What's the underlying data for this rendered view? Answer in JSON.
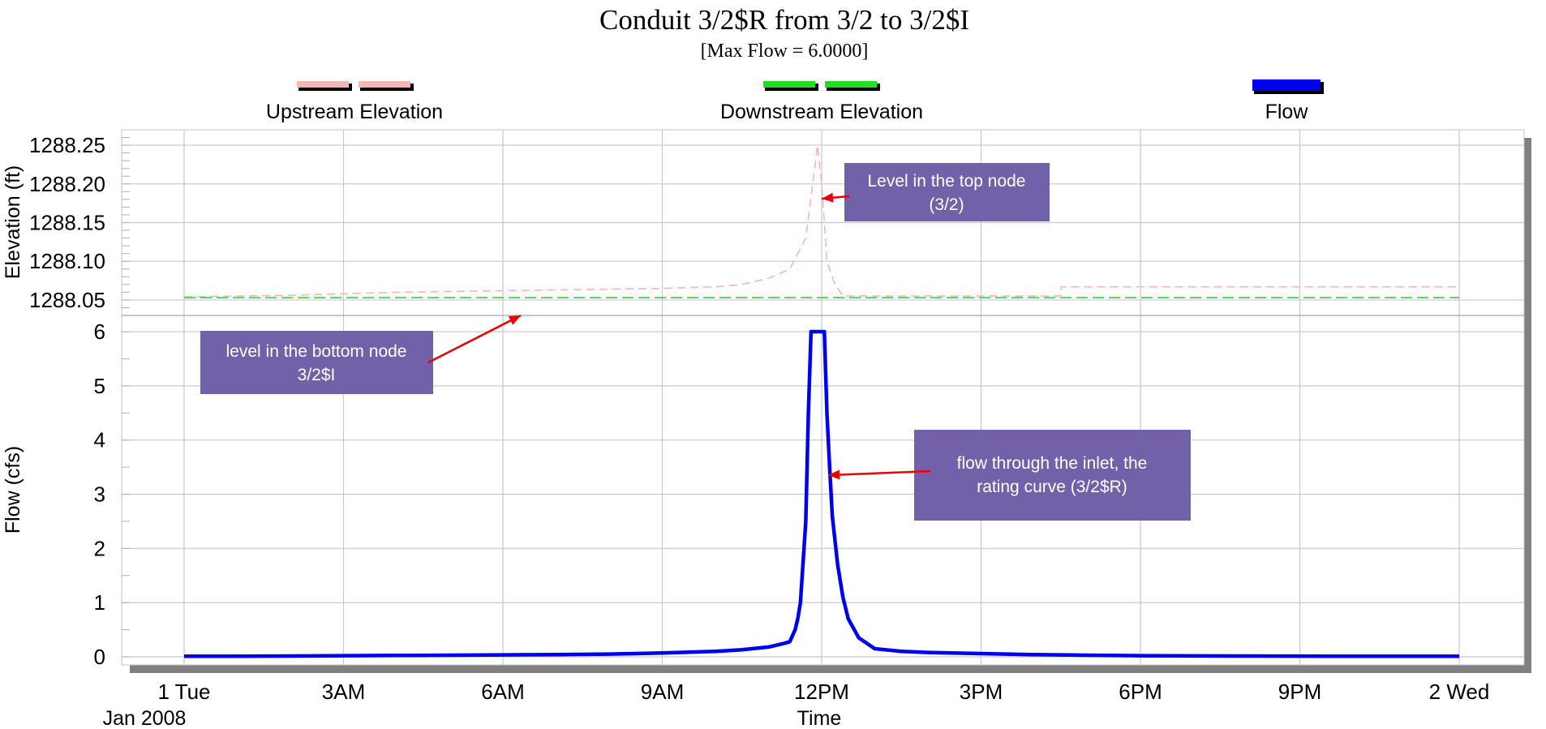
{
  "chart_data": {
    "type": "line",
    "title": "Conduit 3/2$R from 3/2 to 3/2$I",
    "subtitle": "[Max Flow = 6.0000]",
    "xlabel": "Time",
    "x_ticks": [
      "1 Tue",
      "3AM",
      "6AM",
      "9AM",
      "12PM",
      "3PM",
      "6PM",
      "9PM",
      "2 Wed"
    ],
    "x_date_label": "Jan 2008",
    "x_range_hours": [
      0,
      24
    ],
    "grid": true,
    "legend_position": "top",
    "legend": [
      {
        "name": "Upstream Elevation",
        "color": "#f4b6b6",
        "style": "dashed"
      },
      {
        "name": "Downstream Elevation",
        "color": "#22dd22",
        "style": "dashed"
      },
      {
        "name": "Flow",
        "color": "#0000ee",
        "style": "solid"
      }
    ],
    "panels": [
      {
        "id": "elevation",
        "ylabel": "Elevation (ft)",
        "ylim": [
          1288.03,
          1288.27
        ],
        "y_ticks": [
          "1288.25",
          "1288.20",
          "1288.15",
          "1288.10",
          "1288.05"
        ],
        "y_tick_values": [
          1288.25,
          1288.2,
          1288.15,
          1288.1,
          1288.05
        ],
        "series": [
          {
            "name": "Upstream Elevation",
            "x": [
              0,
              1,
              2,
              3,
              4,
              5,
              6,
              7,
              8,
              9,
              10,
              10.5,
              11,
              11.4,
              11.7,
              11.85,
              11.92,
              12.0,
              12.1,
              12.25,
              12.4,
              13,
              16.5,
              16.51,
              18,
              24
            ],
            "y": [
              1288.054,
              1288.055,
              1288.056,
              1288.058,
              1288.06,
              1288.061,
              1288.062,
              1288.063,
              1288.064,
              1288.065,
              1288.067,
              1288.07,
              1288.078,
              1288.09,
              1288.13,
              1288.21,
              1288.25,
              1288.2,
              1288.1,
              1288.07,
              1288.055,
              1288.055,
              1288.055,
              1288.067,
              1288.067,
              1288.067
            ]
          },
          {
            "name": "Downstream Elevation",
            "x": [
              0,
              24
            ],
            "y": [
              1288.053,
              1288.053
            ]
          }
        ]
      },
      {
        "id": "flow",
        "ylabel": "Flow (cfs)",
        "ylim": [
          -0.15,
          6.3
        ],
        "y_ticks": [
          "6",
          "5",
          "4",
          "3",
          "2",
          "1",
          "0"
        ],
        "y_tick_values": [
          6,
          5,
          4,
          3,
          2,
          1,
          0
        ],
        "series": [
          {
            "name": "Flow",
            "x": [
              0,
              1,
              2,
              3,
              4,
              5,
              6,
              7,
              8,
              8.5,
              9,
              9.5,
              10,
              10.5,
              11,
              11.3,
              11.4,
              11.5,
              11.55,
              11.6,
              11.7,
              11.75,
              11.8,
              11.85,
              11.9,
              12.0,
              12.05,
              12.1,
              12.15,
              12.2,
              12.3,
              12.4,
              12.5,
              12.7,
              13,
              13.5,
              14,
              15,
              16,
              17,
              18,
              20,
              22,
              24
            ],
            "y": [
              0.01,
              0.01,
              0.015,
              0.02,
              0.025,
              0.03,
              0.035,
              0.04,
              0.05,
              0.06,
              0.07,
              0.085,
              0.1,
              0.13,
              0.18,
              0.25,
              0.28,
              0.5,
              0.7,
              1.0,
              2.5,
              4.5,
              6.0,
              6.0,
              6.0,
              6.0,
              6.0,
              4.5,
              3.5,
              2.6,
              1.7,
              1.1,
              0.7,
              0.35,
              0.15,
              0.1,
              0.08,
              0.06,
              0.04,
              0.03,
              0.02,
              0.015,
              0.01,
              0.01
            ]
          }
        ]
      }
    ],
    "annotations": [
      {
        "text_lines": [
          "Level in the top node",
          "(3/2)"
        ],
        "target": {
          "panel": "elevation",
          "x": 12.0,
          "y": 1288.18
        }
      },
      {
        "text_lines": [
          "level in the bottom node",
          "3/2$I"
        ],
        "target": {
          "panel": "elevation",
          "x": 6.3,
          "y": 1288.053
        }
      },
      {
        "text_lines": [
          "flow through the inlet, the",
          "rating curve (3/2$R)"
        ],
        "target": {
          "panel": "flow",
          "x": 12.1,
          "y": 3.5
        }
      }
    ]
  }
}
